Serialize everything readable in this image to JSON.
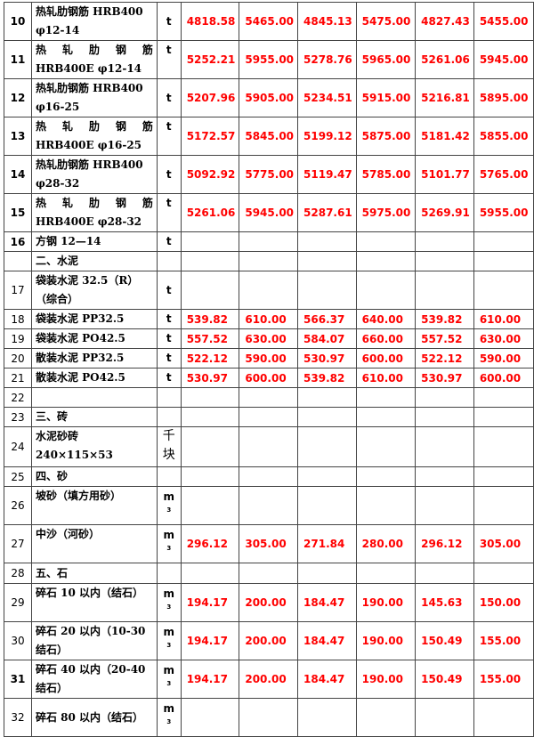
{
  "rows": [
    {
      "no": "10",
      "name": "热轧肋钢筋 HRB400 φ12-14",
      "unit": "t",
      "vals": [
        "4818.58",
        "5465.00",
        "4845.13",
        "5475.00",
        "4827.43",
        "5455.00"
      ],
      "h": 22,
      "b": true
    },
    {
      "no": "11",
      "name": "热 轧 肋 钢 筋  HRB400E φ12-14",
      "unit": "t",
      "vals": [
        "5252.21",
        "5955.00",
        "5278.76",
        "5965.00",
        "5261.06",
        "5945.00"
      ],
      "h": 43,
      "b": true
    },
    {
      "no": "12",
      "name": "热轧肋钢筋 HRB400 φ16-25",
      "unit": "t",
      "vals": [
        "5207.96",
        "5905.00",
        "5234.51",
        "5915.00",
        "5216.81",
        "5895.00"
      ],
      "h": 22,
      "b": true
    },
    {
      "no": "13",
      "name": "热 轧 肋 钢 筋  HRB400E φ16-25",
      "unit": "t",
      "vals": [
        "5172.57",
        "5845.00",
        "5199.12",
        "5875.00",
        "5181.42",
        "5855.00"
      ],
      "h": 43,
      "b": true
    },
    {
      "no": "14",
      "name": "热轧肋钢筋 HRB400 φ28-32",
      "unit": "t",
      "vals": [
        "5092.92",
        "5775.00",
        "5119.47",
        "5785.00",
        "5101.77",
        "5765.00"
      ],
      "h": 22,
      "b": true
    },
    {
      "no": "15",
      "name": "热 轧 肋 钢 筋  HRB400E φ28-32",
      "unit": "t",
      "vals": [
        "5261.06",
        "5945.00",
        "5287.61",
        "5975.00",
        "5269.91",
        "5955.00"
      ],
      "h": 43,
      "b": true
    },
    {
      "no": "16",
      "name": "方钢 12—14",
      "unit": "t",
      "vals": [
        "",
        "",
        "",
        "",
        "",
        ""
      ],
      "h": 22,
      "b": true
    },
    {
      "no": "",
      "name": "二、水泥",
      "unit": "",
      "vals": [
        "",
        "",
        "",
        "",
        "",
        ""
      ],
      "h": 22
    },
    {
      "no": "17",
      "name": "袋装水泥 32.5（R）（综合）",
      "unit": "t",
      "vals": [
        "",
        "",
        "",
        "",
        "",
        ""
      ],
      "h": 22
    },
    {
      "no": "18",
      "name": "袋装水泥 PP32.5",
      "unit": "t",
      "vals": [
        "539.82",
        "610.00",
        "566.37",
        "640.00",
        "539.82",
        "610.00"
      ],
      "h": 22
    },
    {
      "no": "19",
      "name": "袋装水泥 PO42.5",
      "unit": "t",
      "vals": [
        "557.52",
        "630.00",
        "584.07",
        "660.00",
        "557.52",
        "630.00"
      ],
      "h": 22
    },
    {
      "no": "20",
      "name": "散装水泥 PP32.5",
      "unit": "t",
      "vals": [
        "522.12",
        "590.00",
        "530.97",
        "600.00",
        "522.12",
        "590.00"
      ],
      "h": 22
    },
    {
      "no": "21",
      "name": "散装水泥 PO42.5",
      "unit": "t",
      "vals": [
        "530.97",
        "600.00",
        "539.82",
        "610.00",
        "530.97",
        "600.00"
      ],
      "h": 22
    },
    {
      "no": "22",
      "name": "",
      "unit": "",
      "vals": [
        "",
        "",
        "",
        "",
        "",
        ""
      ],
      "h": 22
    },
    {
      "no": "23",
      "name": "三、砖",
      "unit": "",
      "vals": [
        "",
        "",
        "",
        "",
        "",
        ""
      ],
      "h": 22
    },
    {
      "no": "24",
      "name": "水泥砂砖 240×115×53",
      "unit": "千块",
      "vals": [
        "",
        "",
        "",
        "",
        "",
        ""
      ],
      "h": 45
    },
    {
      "no": "25",
      "name": "四、砂",
      "unit": "",
      "vals": [
        "",
        "",
        "",
        "",
        "",
        ""
      ],
      "h": 22
    },
    {
      "no": "26",
      "name": "坡砂（填方用砂）",
      "unit": "m3",
      "vals": [
        "",
        "",
        "",
        "",
        "",
        ""
      ],
      "h": 43
    },
    {
      "no": "27",
      "name": "中沙（河砂）",
      "unit": "m3",
      "vals": [
        "296.12",
        "305.00",
        "271.84",
        "280.00",
        "296.12",
        "305.00"
      ],
      "h": 43
    },
    {
      "no": "28",
      "name": "五、石",
      "unit": "",
      "vals": [
        "",
        "",
        "",
        "",
        "",
        ""
      ],
      "h": 23
    },
    {
      "no": "29",
      "name": "碎石 10 以内（结石）",
      "unit": "m3",
      "vals": [
        "194.17",
        "200.00",
        "184.47",
        "190.00",
        "145.63",
        "150.00"
      ],
      "h": 43
    },
    {
      "no": "30",
      "name": "碎石 20 以内（10-30 结石）",
      "unit": "m3",
      "vals": [
        "194.17",
        "200.00",
        "184.47",
        "190.00",
        "150.49",
        "155.00"
      ],
      "h": 43
    },
    {
      "no": "31",
      "name": "碎石 40 以内（20-40 结石）",
      "unit": "m3",
      "vals": [
        "194.17",
        "200.00",
        "184.47",
        "190.00",
        "150.49",
        "155.00"
      ],
      "h": 43,
      "b": true
    },
    {
      "no": "32",
      "name": "碎石 80 以内（结石）",
      "unit": "m3",
      "vals": [
        "",
        "",
        "",
        "",
        "",
        ""
      ],
      "h": 43,
      "mid": true
    }
  ],
  "colors": {
    "value": "#ff0000",
    "border": "#444444"
  }
}
